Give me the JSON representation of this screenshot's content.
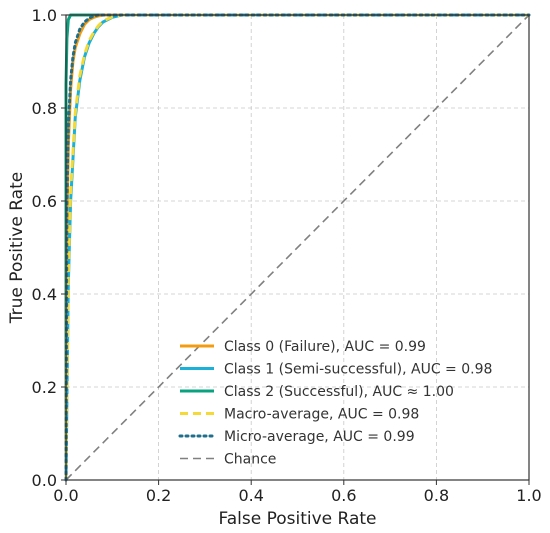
{
  "chart_data": {
    "type": "line",
    "title": "",
    "xlabel": "False Positive Rate",
    "ylabel": "True Positive Rate",
    "xlim": [
      0,
      1
    ],
    "ylim": [
      0,
      1
    ],
    "xticks": [
      "0.0",
      "0.2",
      "0.4",
      "0.6",
      "0.8",
      "1.0"
    ],
    "yticks": [
      "0.0",
      "0.2",
      "0.4",
      "0.6",
      "0.8",
      "1.0"
    ],
    "grid": true,
    "legend_position": "bottom-right",
    "series": [
      {
        "name": "Class 0 (Failure), AUC = 0.99",
        "color": "#f39c12",
        "style": "solid",
        "x": [
          0,
          0.002,
          0.005,
          0.01,
          0.015,
          0.02,
          0.03,
          0.04,
          0.05,
          0.06,
          0.07,
          0.08,
          1.0
        ],
        "y": [
          0,
          0.55,
          0.72,
          0.84,
          0.9,
          0.93,
          0.96,
          0.98,
          0.99,
          0.995,
          0.998,
          1.0,
          1.0
        ]
      },
      {
        "name": "Class 1 (Semi-successful), AUC = 0.98",
        "color": "#1ab0d8",
        "style": "solid",
        "x": [
          0,
          0.005,
          0.01,
          0.02,
          0.03,
          0.04,
          0.05,
          0.06,
          0.07,
          0.08,
          0.1,
          0.12,
          1.0
        ],
        "y": [
          0,
          0.42,
          0.6,
          0.78,
          0.86,
          0.91,
          0.94,
          0.96,
          0.975,
          0.985,
          0.995,
          1.0,
          1.0
        ]
      },
      {
        "name": "Class 2 (Successful), AUC ≈ 1.00",
        "color": "#0aa37f",
        "style": "solid",
        "x": [
          0,
          0.0,
          0.002,
          0.005,
          0.01,
          0.015,
          1.0
        ],
        "y": [
          0,
          0.85,
          0.95,
          0.99,
          1.0,
          1.0,
          1.0
        ]
      },
      {
        "name": "Macro-average, AUC = 0.98",
        "color": "#f5d936",
        "style": "dashed",
        "x": [
          0,
          0.005,
          0.01,
          0.02,
          0.03,
          0.04,
          0.05,
          0.06,
          0.07,
          0.08,
          0.1,
          0.12,
          1.0
        ],
        "y": [
          0,
          0.44,
          0.62,
          0.79,
          0.87,
          0.915,
          0.945,
          0.963,
          0.977,
          0.987,
          0.996,
          1.0,
          1.0
        ]
      },
      {
        "name": "Micro-average, AUC = 0.99",
        "color": "#1f6e8c",
        "style": "dotted",
        "x": [
          0,
          0.002,
          0.005,
          0.01,
          0.015,
          0.02,
          0.03,
          0.04,
          0.05,
          0.06,
          0.07,
          1.0
        ],
        "y": [
          0,
          0.6,
          0.76,
          0.86,
          0.91,
          0.94,
          0.97,
          0.985,
          0.993,
          0.998,
          1.0,
          1.0
        ]
      },
      {
        "name": "Chance",
        "color": "#808080",
        "style": "dashed",
        "x": [
          0,
          1
        ],
        "y": [
          0,
          1
        ]
      }
    ]
  }
}
